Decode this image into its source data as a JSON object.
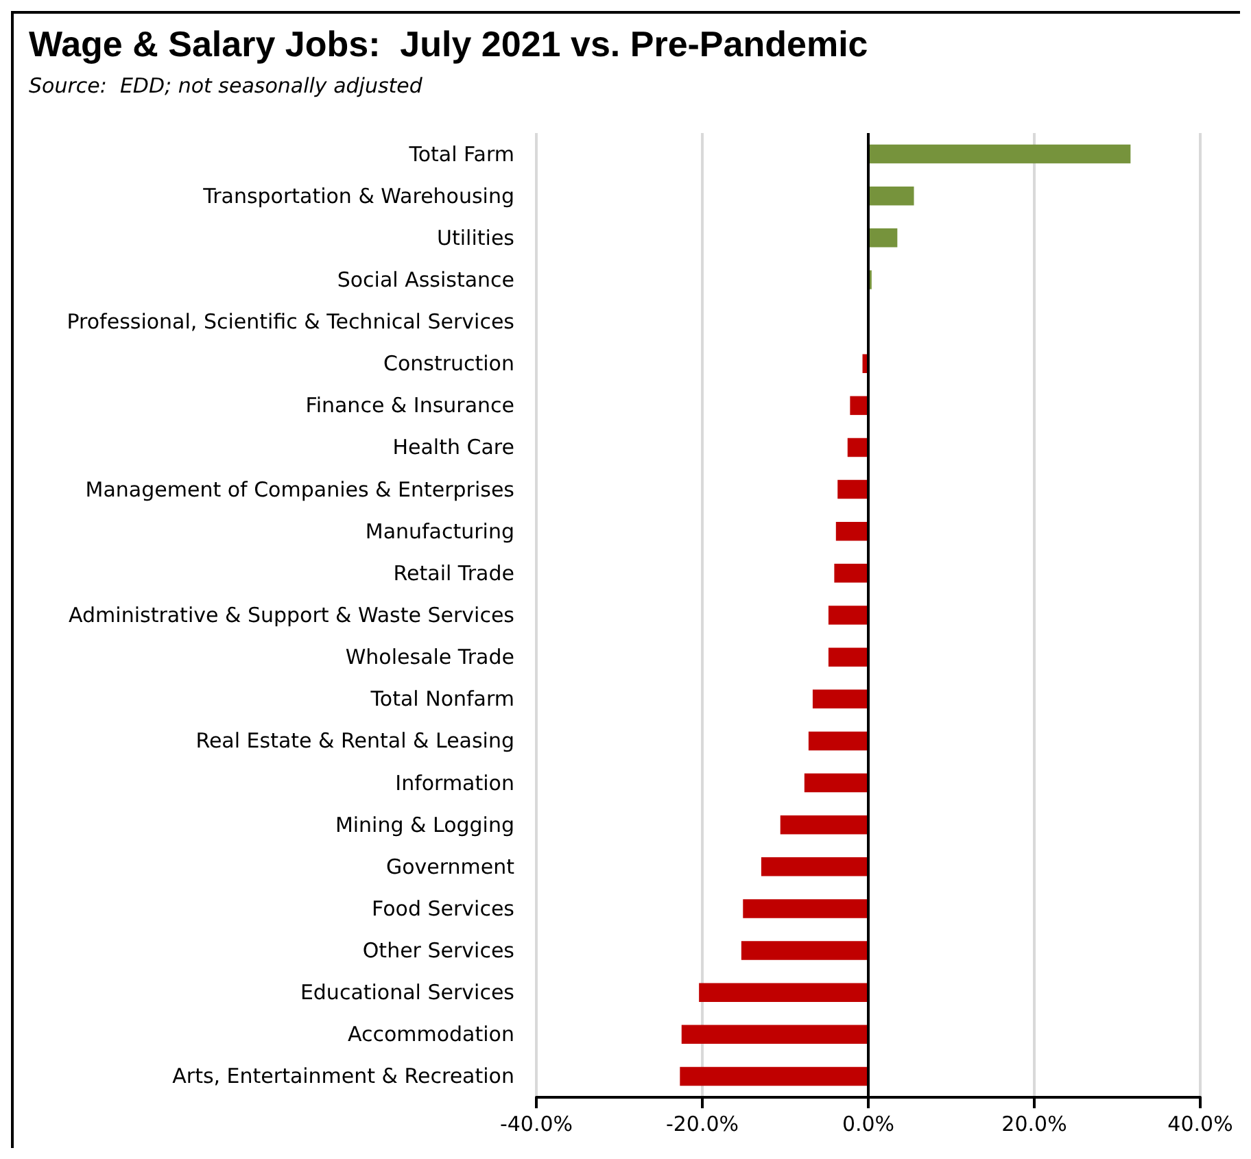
{
  "chart_data": {
    "type": "bar",
    "orientation": "horizontal",
    "title": "Wage & Salary Jobs:  July 2021 vs. Pre-Pandemic",
    "subtitle": "Source:  EDD; not seasonally adjusted",
    "categories": [
      "Total Farm",
      "Transportation & Warehousing",
      "Utilities",
      "Social Assistance",
      "Professional, Scientific & Technical Services",
      "Construction",
      "Finance & Insurance",
      "Health Care",
      "Management of Companies & Enterprises",
      "Manufacturing",
      "Retail Trade",
      "Administrative & Support & Waste Services",
      "Wholesale Trade",
      "Total Nonfarm",
      "Real Estate & Rental & Leasing",
      "Information",
      "Mining & Logging",
      "Government",
      "Food Services",
      "Other Services",
      "Educational Services",
      "Accommodation",
      "Arts, Entertainment & Recreation"
    ],
    "values": [
      31.6,
      5.5,
      3.5,
      0.4,
      0,
      -0.7,
      -2.2,
      -2.5,
      -3.7,
      -3.9,
      -4.1,
      -4.8,
      -4.8,
      -6.7,
      -7.2,
      -7.7,
      -10.6,
      -12.9,
      -15.1,
      -15.3,
      -20.4,
      -22.5,
      -22.7
    ],
    "colors": [
      "#76933c",
      "#76933c",
      "#76933c",
      "#76933c",
      "#76933c",
      "#c00000",
      "#c00000",
      "#c00000",
      "#c00000",
      "#c00000",
      "#c00000",
      "#c00000",
      "#c00000",
      "#c00000",
      "#c00000",
      "#c00000",
      "#c00000",
      "#c00000",
      "#c00000",
      "#c00000",
      "#c00000",
      "#c00000",
      "#c00000"
    ],
    "xlim": [
      -40,
      40
    ],
    "xticks": [
      {
        "value": -40,
        "label": "-40.0%"
      },
      {
        "value": -20,
        "label": "-20.0%"
      },
      {
        "value": 0,
        "label": "0.0%"
      },
      {
        "value": 20,
        "label": "20.0%"
      },
      {
        "value": 40,
        "label": "40.0%"
      }
    ],
    "grid": "x"
  }
}
